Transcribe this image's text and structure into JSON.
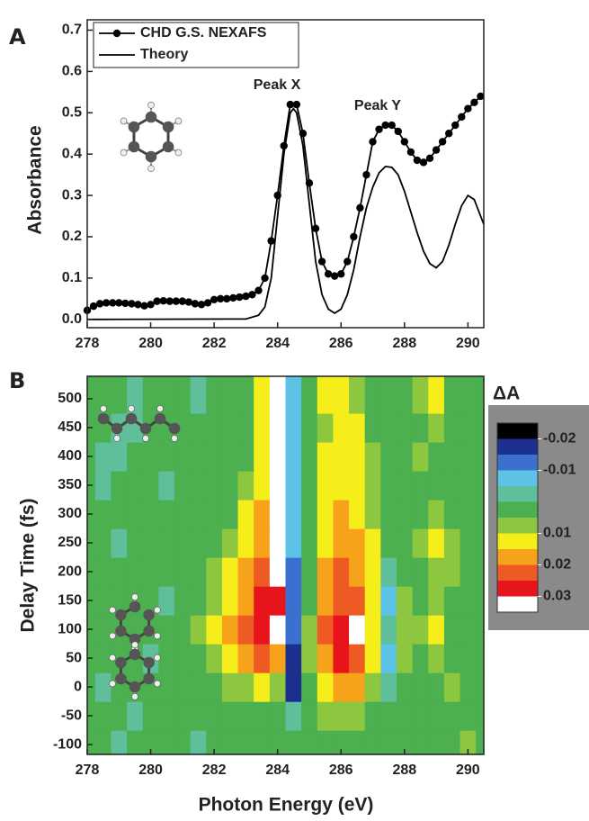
{
  "chart_data": [
    {
      "type": "line",
      "panel_label": "A",
      "ylabel": "Absorbance",
      "xlim": [
        278,
        290.5
      ],
      "ylim": [
        -0.02,
        0.725
      ],
      "xticks": [
        278,
        280,
        282,
        284,
        286,
        288,
        290
      ],
      "yticks": [
        {
          "value": 0,
          "label": "0.0"
        },
        0.1,
        0.2,
        0.3,
        0.4,
        0.5,
        0.6,
        0.7
      ],
      "annotations": [
        "Peak X",
        "Peak Y"
      ],
      "series": [
        {
          "name": "CHD G.S. NEXAFS",
          "color": "#000000",
          "markers": true,
          "x": [
            278.0,
            278.2,
            278.4,
            278.6,
            278.8,
            279.0,
            279.2,
            279.4,
            279.6,
            279.8,
            280.0,
            280.2,
            280.4,
            280.6,
            280.8,
            281.0,
            281.2,
            281.4,
            281.6,
            281.8,
            282.0,
            282.2,
            282.4,
            282.6,
            282.8,
            283.0,
            283.2,
            283.4,
            283.6,
            283.8,
            284.0,
            284.2,
            284.4,
            284.6,
            284.8,
            285.0,
            285.2,
            285.4,
            285.6,
            285.8,
            286.0,
            286.2,
            286.4,
            286.6,
            286.8,
            287.0,
            287.2,
            287.4,
            287.6,
            287.8,
            288.0,
            288.2,
            288.4,
            288.6,
            288.8,
            289.0,
            289.2,
            289.4,
            289.6,
            289.8,
            290.0,
            290.2,
            290.4
          ],
          "values": [
            0.022,
            0.032,
            0.038,
            0.04,
            0.04,
            0.04,
            0.039,
            0.038,
            0.036,
            0.033,
            0.036,
            0.044,
            0.045,
            0.044,
            0.044,
            0.044,
            0.042,
            0.038,
            0.036,
            0.04,
            0.048,
            0.05,
            0.05,
            0.052,
            0.054,
            0.056,
            0.06,
            0.07,
            0.1,
            0.19,
            0.3,
            0.42,
            0.52,
            0.52,
            0.45,
            0.33,
            0.22,
            0.14,
            0.11,
            0.105,
            0.11,
            0.14,
            0.2,
            0.27,
            0.35,
            0.43,
            0.46,
            0.47,
            0.47,
            0.455,
            0.43,
            0.405,
            0.385,
            0.38,
            0.39,
            0.41,
            0.43,
            0.45,
            0.47,
            0.49,
            0.51,
            0.525,
            0.54
          ]
        },
        {
          "name": "Theory",
          "color": "#000000",
          "markers": false,
          "x": [
            278,
            283.0,
            283.4,
            283.6,
            283.8,
            284.0,
            284.2,
            284.4,
            284.5,
            284.6,
            284.8,
            285.0,
            285.2,
            285.4,
            285.6,
            285.8,
            286.0,
            286.2,
            286.4,
            286.6,
            286.8,
            287.0,
            287.2,
            287.4,
            287.6,
            287.8,
            288.0,
            288.2,
            288.4,
            288.6,
            288.8,
            289.0,
            289.2,
            289.4,
            289.6,
            289.8,
            290.0,
            290.2,
            290.4,
            290.5
          ],
          "values": [
            0,
            0.001,
            0.01,
            0.03,
            0.1,
            0.25,
            0.4,
            0.5,
            0.51,
            0.5,
            0.42,
            0.28,
            0.14,
            0.06,
            0.025,
            0.015,
            0.025,
            0.06,
            0.12,
            0.2,
            0.27,
            0.32,
            0.355,
            0.37,
            0.368,
            0.35,
            0.31,
            0.26,
            0.21,
            0.165,
            0.135,
            0.125,
            0.14,
            0.18,
            0.23,
            0.275,
            0.3,
            0.29,
            0.25,
            0.23
          ]
        }
      ]
    },
    {
      "type": "heatmap",
      "panel_label": "B",
      "xlabel": "Photon Energy (eV)",
      "ylabel": "Delay Time (fs)",
      "xlim": [
        278,
        290.5
      ],
      "ylim": [
        -117,
        539
      ],
      "xticks": [
        278,
        280,
        282,
        284,
        286,
        288,
        290
      ],
      "yticks": [
        -100,
        -50,
        0,
        50,
        100,
        150,
        200,
        250,
        300,
        350,
        400,
        450,
        500
      ],
      "x": [
        278,
        278.5,
        279,
        279.5,
        280,
        280.5,
        281,
        281.5,
        282,
        282.5,
        283,
        283.5,
        284,
        284.5,
        285,
        285.5,
        286,
        286.5,
        287,
        287.5,
        288,
        288.5,
        289,
        289.5,
        290,
        290.5
      ],
      "y": [
        -100,
        -50,
        0,
        50,
        100,
        150,
        200,
        250,
        300,
        350,
        400,
        450,
        500
      ],
      "z": [
        [
          0.003,
          0.004,
          -0.002,
          0.003,
          0.003,
          0.004,
          0.003,
          -0.003,
          0.003,
          0.003,
          0.004,
          0.003,
          0.003,
          0.002,
          0.003,
          0.004,
          0.003,
          0.003,
          0.004,
          0.003,
          0.003,
          0.003,
          0.004,
          0.003,
          0.007,
          0.003
        ],
        [
          0.003,
          0.003,
          0.003,
          -0.003,
          0.003,
          0.003,
          0.004,
          0.003,
          0.003,
          0.004,
          0.003,
          0.004,
          0.003,
          -0.004,
          0.003,
          0.006,
          0.008,
          0.006,
          0.003,
          0.003,
          0.004,
          0.003,
          0.003,
          0.004,
          0.003,
          0.003
        ],
        [
          0.003,
          -0.002,
          0.003,
          0.003,
          0.003,
          0.004,
          0.003,
          0.003,
          0.004,
          0.006,
          0.008,
          0.012,
          0.006,
          -0.018,
          0.004,
          0.012,
          0.018,
          0.016,
          0.008,
          -0.004,
          0.003,
          0.004,
          0.003,
          0.006,
          0.003,
          0.003
        ],
        [
          0.004,
          0.003,
          0.003,
          0.003,
          -0.003,
          0.003,
          0.003,
          0.004,
          0.006,
          0.012,
          0.016,
          0.022,
          0.016,
          -0.016,
          0.006,
          0.02,
          0.026,
          0.024,
          0.012,
          -0.006,
          0.006,
          0.004,
          0.008,
          0.003,
          0.004,
          0.003
        ],
        [
          0.003,
          0.003,
          0.004,
          0.003,
          0.003,
          0.003,
          0.004,
          0.006,
          0.012,
          0.016,
          0.022,
          0.028,
          0.032,
          -0.014,
          0.006,
          0.022,
          0.028,
          0.032,
          0.014,
          -0.004,
          0.008,
          0.006,
          0.01,
          0.003,
          0.003,
          0.004
        ],
        [
          0.003,
          0.003,
          0.003,
          0.004,
          0.003,
          -0.002,
          0.003,
          0.003,
          0.006,
          0.014,
          0.02,
          0.026,
          0.028,
          -0.012,
          0.004,
          0.02,
          0.024,
          0.022,
          0.012,
          -0.006,
          0.006,
          0.003,
          0.006,
          0.004,
          0.003,
          0.003
        ],
        [
          0.003,
          0.004,
          0.003,
          0.003,
          0.003,
          0.003,
          0.003,
          0.004,
          0.006,
          0.01,
          0.016,
          0.024,
          0.03,
          -0.012,
          0.004,
          0.018,
          0.022,
          0.02,
          0.012,
          -0.004,
          0.003,
          0.004,
          0.008,
          0.006,
          0.003,
          0.003
        ],
        [
          0.003,
          0.003,
          -0.003,
          0.003,
          0.003,
          0.003,
          0.004,
          0.003,
          0.004,
          0.006,
          0.012,
          0.02,
          0.032,
          -0.01,
          0.003,
          0.014,
          0.018,
          0.016,
          0.01,
          0.003,
          0.004,
          0.006,
          0.012,
          0.008,
          0.003,
          0.003
        ],
        [
          0.003,
          0.003,
          0.003,
          0.003,
          0.004,
          0.003,
          0.003,
          0.003,
          0.003,
          0.004,
          0.01,
          0.018,
          0.03,
          -0.008,
          0.003,
          0.012,
          0.016,
          0.014,
          0.008,
          0.003,
          0.003,
          0.004,
          0.006,
          0.003,
          0.003,
          0.003
        ],
        [
          0.003,
          -0.003,
          0.003,
          0.003,
          0.003,
          -0.002,
          0.003,
          0.003,
          0.003,
          0.004,
          0.006,
          0.012,
          0.034,
          -0.006,
          0.003,
          0.01,
          0.012,
          0.01,
          0.006,
          0.003,
          0.003,
          0.003,
          0.004,
          0.003,
          0.003,
          0.003
        ],
        [
          0.003,
          -0.004,
          -0.003,
          0.003,
          0.003,
          0.003,
          0.003,
          0.003,
          0.003,
          0.003,
          0.004,
          0.012,
          0.034,
          -0.006,
          0.003,
          0.01,
          0.01,
          0.012,
          0.006,
          0.003,
          0.003,
          0.008,
          0.004,
          0.003,
          0.003,
          0.003
        ],
        [
          0.003,
          0.003,
          -0.004,
          -0.003,
          0.003,
          0.003,
          0.003,
          0.003,
          0.003,
          0.003,
          0.004,
          0.01,
          0.034,
          -0.008,
          0.003,
          0.008,
          0.012,
          0.01,
          0.004,
          0.003,
          0.003,
          0.004,
          0.008,
          0.003,
          0.003,
          0.003
        ],
        [
          0.003,
          0.003,
          0.003,
          -0.003,
          0.003,
          0.003,
          0.003,
          -0.002,
          0.003,
          0.003,
          0.004,
          0.012,
          0.034,
          -0.008,
          0.003,
          0.01,
          0.012,
          0.008,
          0.004,
          0.003,
          0.003,
          0.006,
          0.01,
          0.003,
          0.003,
          0.003
        ]
      ],
      "colorbar": {
        "title": "ΔA",
        "lim": [
          -0.025,
          0.035
        ],
        "ticks": [
          -0.02,
          -0.01,
          0.01,
          0.02,
          0.03
        ],
        "colors": [
          "#000000",
          "#1c2f8f",
          "#3b6fd0",
          "#5cc3e6",
          "#5fbf9a",
          "#4caf50",
          "#8dc63f",
          "#f5ee1a",
          "#f7a21b",
          "#ee5a24",
          "#e8141b",
          "#ffffff"
        ]
      }
    }
  ]
}
